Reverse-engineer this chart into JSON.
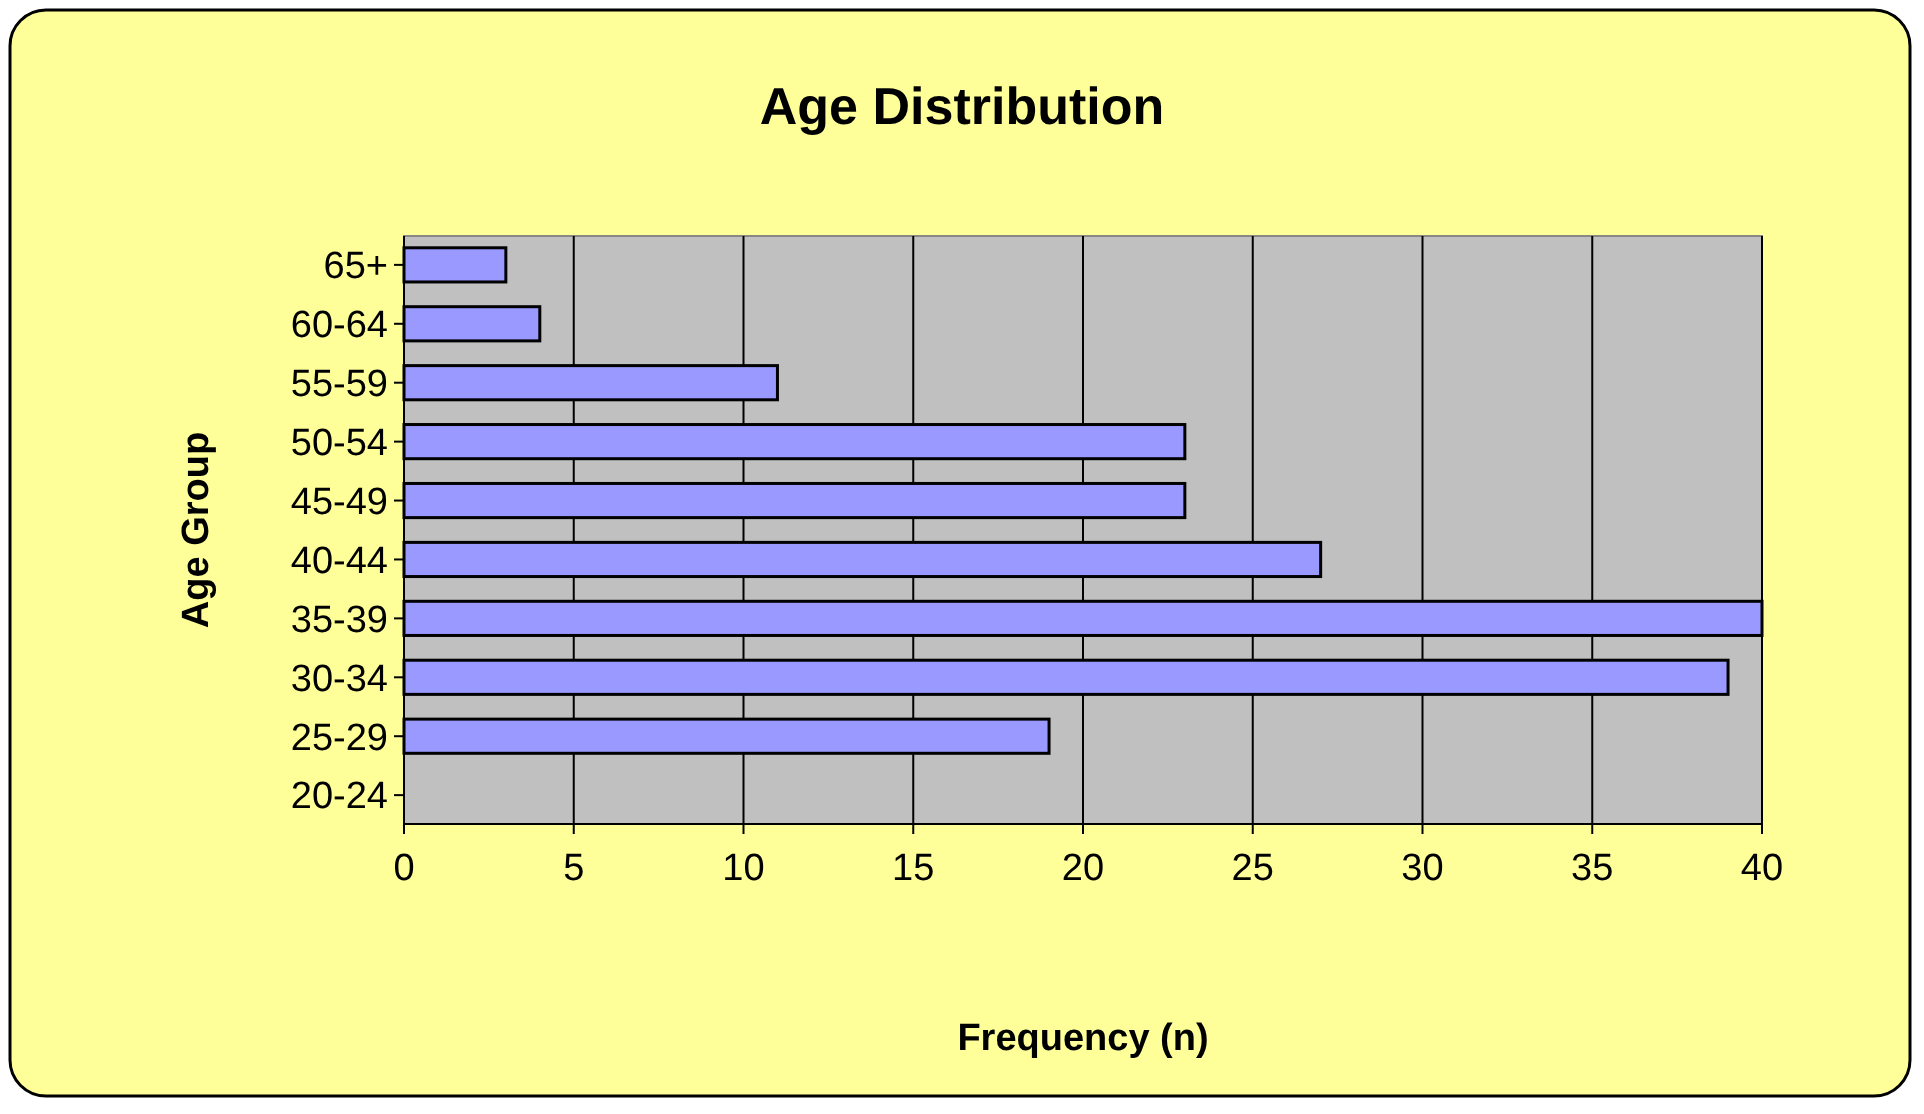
{
  "chart_data": {
    "type": "bar",
    "orientation": "horizontal",
    "title": "Age Distribution",
    "xlabel": "Frequency (n)",
    "ylabel": "Age Group",
    "categories": [
      "65+",
      "60-64",
      "55-59",
      "50-54",
      "45-49",
      "40-44",
      "35-39",
      "30-34",
      "25-29",
      "20-24"
    ],
    "values": [
      3,
      4,
      11,
      23,
      23,
      27,
      40,
      39,
      19,
      0
    ],
    "color": "#9999ff",
    "xlim": [
      0,
      40
    ],
    "xticks": [
      0,
      5,
      10,
      15,
      20,
      25,
      30,
      35,
      40
    ],
    "grid": "x"
  }
}
